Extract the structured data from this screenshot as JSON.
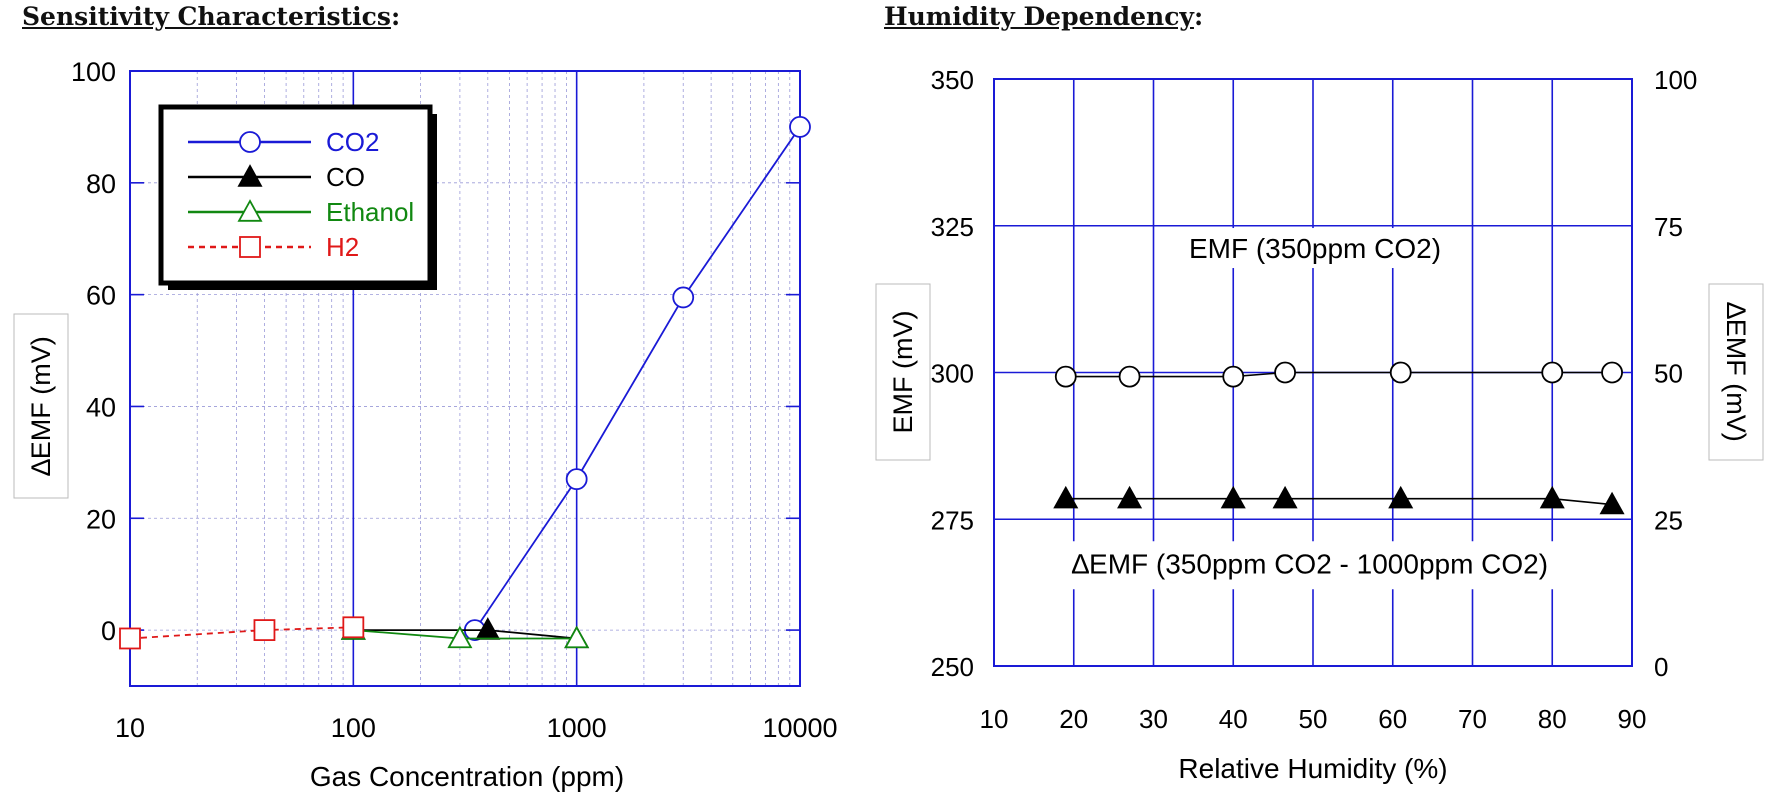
{
  "headings": {
    "left": "Sensitivity Characteristics",
    "right": "Humidity Dependency",
    "suffix": ":"
  },
  "colors": {
    "frame": "#1a1ad6",
    "grid_minor": "#9a9ad8",
    "co2": "#1a1ad6",
    "co": "#000000",
    "ethanol": "#118811",
    "h2": "#e01818",
    "black": "#000000"
  },
  "chart_data": [
    {
      "type": "line",
      "xscale": "log",
      "title": "Sensitivity Characteristics",
      "xlabel": "Gas Concentration (ppm)",
      "ylabel": "∆EMF (mV)",
      "xlim": [
        10,
        10000
      ],
      "ylim": [
        -10,
        100
      ],
      "x_ticks": [
        10,
        100,
        1000,
        10000
      ],
      "x_tick_labels": [
        "10",
        "100",
        "1000",
        "10000"
      ],
      "y_ticks": [
        0,
        20,
        40,
        60,
        80,
        100
      ],
      "y_tick_labels": [
        "0",
        "20",
        "40",
        "60",
        "80",
        "100"
      ],
      "grid": true,
      "legend_position": "top-left",
      "series": [
        {
          "name": "CO2",
          "marker": "circle-open",
          "line": "solid",
          "color_key": "co2",
          "x": [
            350,
            1000,
            3000,
            10000
          ],
          "y": [
            0,
            27,
            59.5,
            90
          ]
        },
        {
          "name": "CO",
          "marker": "triangle-filled",
          "line": "solid",
          "color_key": "co",
          "x": [
            100,
            400,
            1000
          ],
          "y": [
            0,
            0,
            -1.5
          ]
        },
        {
          "name": "Ethanol",
          "marker": "triangle-open",
          "line": "solid",
          "color_key": "ethanol",
          "x": [
            100,
            300,
            1000
          ],
          "y": [
            0,
            -1.5,
            -1.5
          ]
        },
        {
          "name": "H2",
          "marker": "square-open",
          "line": "dashed",
          "color_key": "h2",
          "x": [
            10,
            40,
            100
          ],
          "y": [
            -1.5,
            0,
            0.5
          ]
        }
      ]
    },
    {
      "type": "line",
      "title": "Humidity Dependency",
      "xlabel": "Relative Humidity (%)",
      "ylabel_left": "EMF (mV)",
      "ylabel_right": "∆EMF (mV)",
      "xlim": [
        10,
        90
      ],
      "ylim_left": [
        250,
        350
      ],
      "ylim_right": [
        0,
        100
      ],
      "x_ticks": [
        10,
        20,
        30,
        40,
        50,
        60,
        70,
        80,
        90
      ],
      "x_tick_labels": [
        "10",
        "20",
        "30",
        "40",
        "50",
        "60",
        "70",
        "80",
        "90"
      ],
      "y_left_ticks": [
        250,
        275,
        300,
        325,
        350
      ],
      "y_left_tick_labels": [
        "250",
        "275",
        "300",
        "325",
        "350"
      ],
      "y_right_ticks": [
        0,
        25,
        50,
        75,
        100
      ],
      "y_right_tick_labels": [
        "0",
        "25",
        "50",
        "75",
        "100"
      ],
      "grid": true,
      "series": [
        {
          "name": "EMF (350ppm CO2)",
          "axis": "left",
          "marker": "circle-open",
          "line": "solid",
          "x": [
            19,
            27,
            40,
            46.5,
            61,
            80,
            87.5
          ],
          "y": [
            299.3,
            299.3,
            299.3,
            300,
            300,
            300,
            300
          ]
        },
        {
          "name": "∆EMF (350ppm CO2 - 1000ppm CO2)",
          "axis": "right",
          "marker": "triangle-filled",
          "line": "solid",
          "x": [
            19,
            27,
            40,
            46.5,
            61,
            80,
            87.5
          ],
          "y": [
            28.5,
            28.5,
            28.5,
            28.5,
            28.5,
            28.5,
            27.5
          ]
        }
      ]
    }
  ]
}
